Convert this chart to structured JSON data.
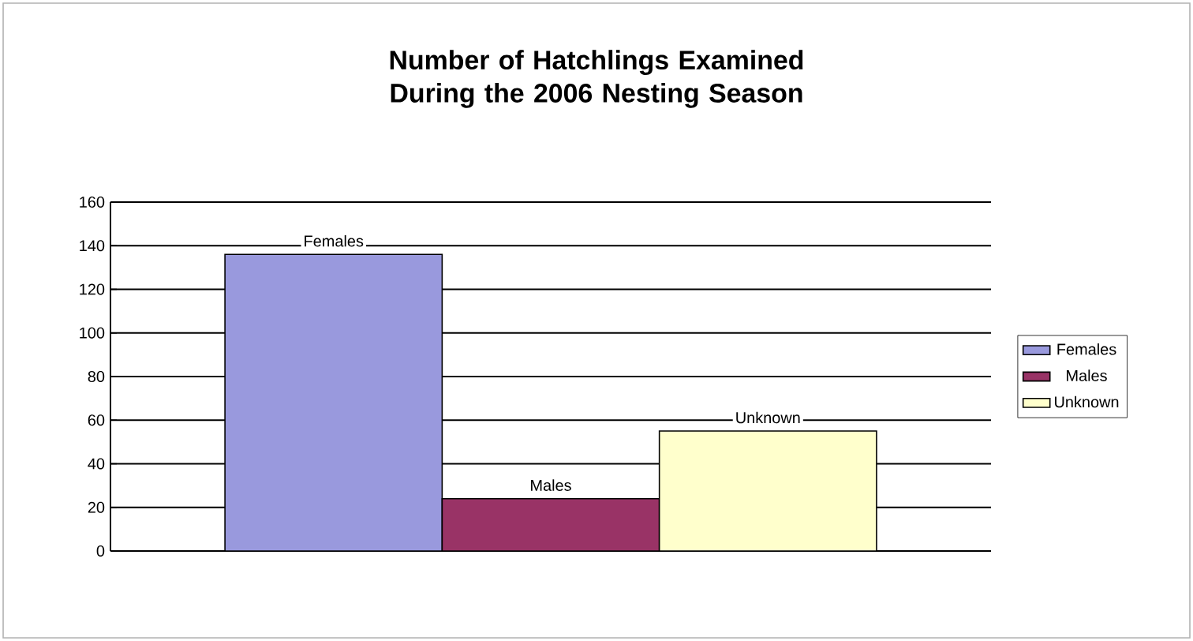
{
  "chart_data": {
    "type": "bar",
    "title": "Number of Hatchlings Examined During the 2006 Nesting Season",
    "categories": [
      null
    ],
    "series": [
      {
        "name": "Females",
        "color": "#9999dd",
        "values": [
          136
        ]
      },
      {
        "name": "Males",
        "color": "#993366",
        "values": [
          24
        ]
      },
      {
        "name": "Unknown",
        "color": "#ffffcc",
        "values": [
          55
        ]
      }
    ],
    "ylim": [
      0,
      160
    ],
    "yticks": [
      0,
      20,
      40,
      60,
      80,
      100,
      120,
      140,
      160
    ],
    "grid": "y",
    "legend": "right"
  }
}
